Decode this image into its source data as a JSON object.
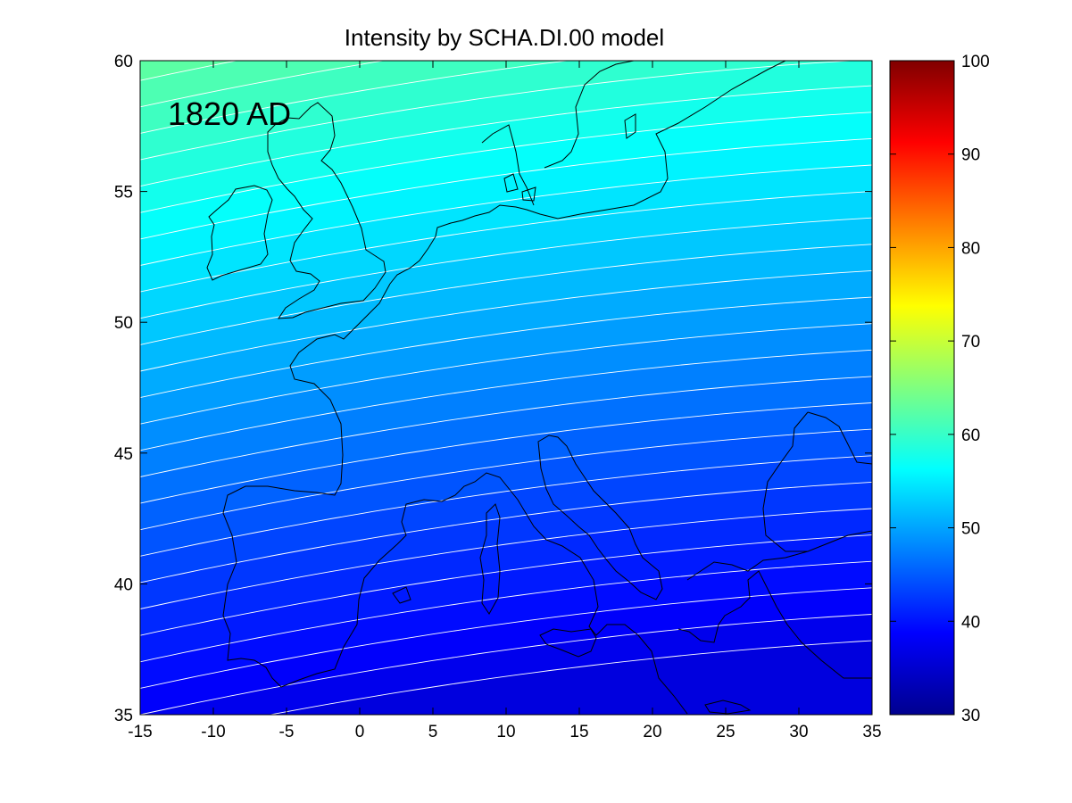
{
  "chart_data": {
    "type": "heatmap",
    "title": "Intensity by SCHA.DI.00 model",
    "annotation": "1820 AD",
    "xlabel": "",
    "ylabel": "",
    "xlim": [
      -15,
      35
    ],
    "ylim": [
      35,
      60
    ],
    "x_ticks": [
      "-15",
      "-10",
      "-5",
      "0",
      "5",
      "10",
      "15",
      "20",
      "25",
      "30",
      "35"
    ],
    "y_ticks": [
      "60",
      "55",
      "50",
      "45",
      "40",
      "35"
    ],
    "colorbar": {
      "colormap": "jet",
      "range": [
        30,
        100
      ],
      "ticks": [
        "100",
        "90",
        "80",
        "70",
        "60",
        "50",
        "40",
        "30"
      ]
    },
    "field_samples": [
      {
        "lon": -15,
        "lat": 60,
        "value": 63
      },
      {
        "lon": 0,
        "lat": 55,
        "value": 57
      },
      {
        "lon": 10,
        "lat": 52,
        "value": 53
      },
      {
        "lon": 20,
        "lat": 50,
        "value": 50
      },
      {
        "lon": 0,
        "lat": 45,
        "value": 49
      },
      {
        "lon": 15,
        "lat": 42,
        "value": 44
      },
      {
        "lon": 35,
        "lat": 35,
        "value": 38
      }
    ],
    "contour_lines": "white isolines every 1 unit",
    "grid": false,
    "legend": "colorbar-right"
  }
}
